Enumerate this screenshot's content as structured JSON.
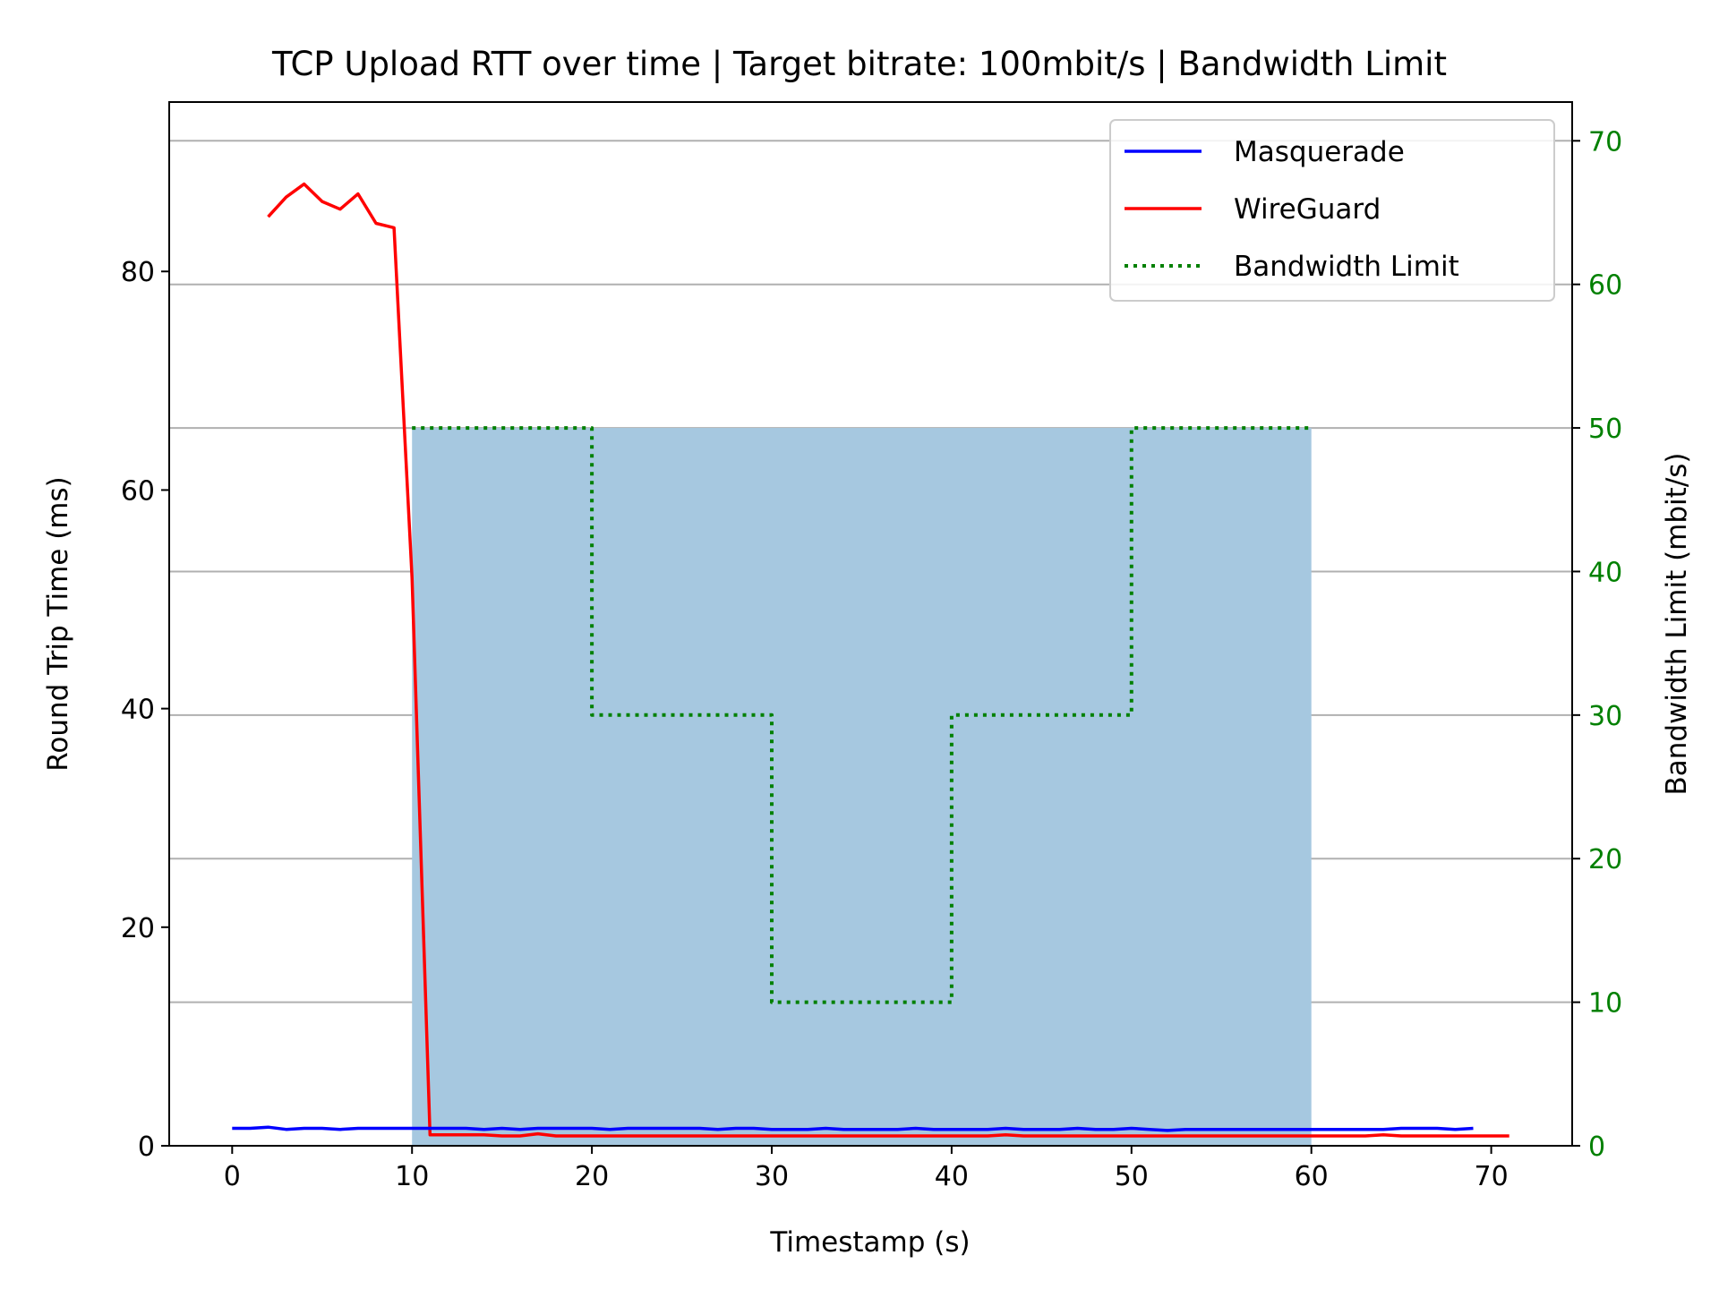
{
  "chart_data": {
    "type": "line",
    "title": "TCP Upload RTT over time | Target bitrate: 100mbit/s | Bandwidth Limit",
    "xlabel": "Timestamp (s)",
    "ylabel": "Round Trip Time (ms)",
    "y2label": "Bandwidth Limit (mbit/s)",
    "xlim": [
      -3.5,
      74.5
    ],
    "ylim": [
      0,
      95.5
    ],
    "y2lim": [
      0,
      72.7
    ],
    "xticks": [
      0,
      10,
      20,
      30,
      40,
      50,
      60,
      70
    ],
    "yticks": [
      0,
      20,
      40,
      60,
      80
    ],
    "y2ticks": [
      0,
      10,
      20,
      30,
      40,
      50,
      60,
      70
    ],
    "grid": "horizontal lines at right-axis ticks",
    "legend_position": "top-right",
    "colors": {
      "masquerade": "#0000ff",
      "wireguard": "#ff0000",
      "limit": "#008000",
      "fill": "#a6c8e0",
      "grid": "#b0b0b0",
      "right_axis": "#008000"
    },
    "series": [
      {
        "name": "Masquerade",
        "axis": "left",
        "style": "solid",
        "color": "#0000ff",
        "x": [
          0,
          1,
          2,
          3,
          4,
          5,
          6,
          7,
          8,
          9,
          10,
          11,
          12,
          13,
          14,
          15,
          16,
          17,
          18,
          19,
          20,
          21,
          22,
          23,
          24,
          25,
          26,
          27,
          28,
          29,
          30,
          31,
          32,
          33,
          34,
          35,
          36,
          37,
          38,
          39,
          40,
          41,
          42,
          43,
          44,
          45,
          46,
          47,
          48,
          49,
          50,
          51,
          52,
          53,
          54,
          55,
          56,
          57,
          58,
          59,
          60,
          61,
          62,
          63,
          64,
          65,
          66,
          67,
          68,
          69
        ],
        "y": [
          1.6,
          1.6,
          1.7,
          1.5,
          1.6,
          1.6,
          1.5,
          1.6,
          1.6,
          1.6,
          1.6,
          1.6,
          1.6,
          1.6,
          1.5,
          1.6,
          1.5,
          1.6,
          1.6,
          1.6,
          1.6,
          1.5,
          1.6,
          1.6,
          1.6,
          1.6,
          1.6,
          1.5,
          1.6,
          1.6,
          1.5,
          1.5,
          1.5,
          1.6,
          1.5,
          1.5,
          1.5,
          1.5,
          1.6,
          1.5,
          1.5,
          1.5,
          1.5,
          1.6,
          1.5,
          1.5,
          1.5,
          1.6,
          1.5,
          1.5,
          1.6,
          1.5,
          1.4,
          1.5,
          1.5,
          1.5,
          1.5,
          1.5,
          1.5,
          1.5,
          1.5,
          1.5,
          1.5,
          1.5,
          1.5,
          1.6,
          1.6,
          1.6,
          1.5,
          1.6
        ]
      },
      {
        "name": "WireGuard",
        "axis": "left",
        "style": "solid",
        "color": "#ff0000",
        "x": [
          2,
          3,
          4,
          5,
          6,
          7,
          8,
          9,
          10,
          11,
          12,
          13,
          14,
          15,
          16,
          17,
          18,
          19,
          20,
          21,
          22,
          23,
          24,
          25,
          26,
          27,
          28,
          29,
          30,
          31,
          32,
          33,
          34,
          35,
          36,
          37,
          38,
          39,
          40,
          41,
          42,
          43,
          44,
          45,
          46,
          47,
          48,
          49,
          50,
          51,
          52,
          53,
          54,
          55,
          56,
          57,
          58,
          59,
          60,
          61,
          62,
          63,
          64,
          65,
          66,
          67,
          68,
          69,
          70,
          71
        ],
        "y": [
          85,
          86.8,
          88,
          86.4,
          85.7,
          87.1,
          84.4,
          84,
          52,
          1.0,
          1.0,
          1.0,
          1.0,
          0.9,
          0.9,
          1.1,
          0.9,
          0.9,
          0.9,
          0.9,
          0.9,
          0.9,
          0.9,
          0.9,
          0.9,
          0.9,
          0.9,
          0.9,
          0.9,
          0.9,
          0.9,
          0.9,
          0.9,
          0.9,
          0.9,
          0.9,
          0.9,
          0.9,
          0.9,
          0.9,
          0.9,
          1.0,
          0.9,
          0.9,
          0.9,
          0.9,
          0.9,
          0.9,
          0.9,
          0.9,
          0.9,
          0.9,
          0.9,
          0.9,
          0.9,
          0.9,
          0.9,
          0.9,
          0.9,
          0.9,
          0.9,
          0.9,
          1.0,
          0.9,
          0.9,
          0.9,
          0.9,
          0.9,
          0.9,
          0.9
        ]
      },
      {
        "name": "Bandwidth Limit",
        "axis": "right",
        "style": "dotted-step",
        "color": "#008000",
        "x": [
          10,
          20,
          20,
          30,
          30,
          40,
          40,
          50,
          50,
          60
        ],
        "y": [
          50,
          50,
          30,
          30,
          10,
          10,
          30,
          30,
          50,
          50
        ]
      }
    ],
    "filled_regions": [
      {
        "x_start": 10,
        "x_end": 60,
        "y_top": 50,
        "axis": "right"
      }
    ],
    "legend": [
      "Masquerade",
      "WireGuard",
      "Bandwidth Limit"
    ]
  }
}
